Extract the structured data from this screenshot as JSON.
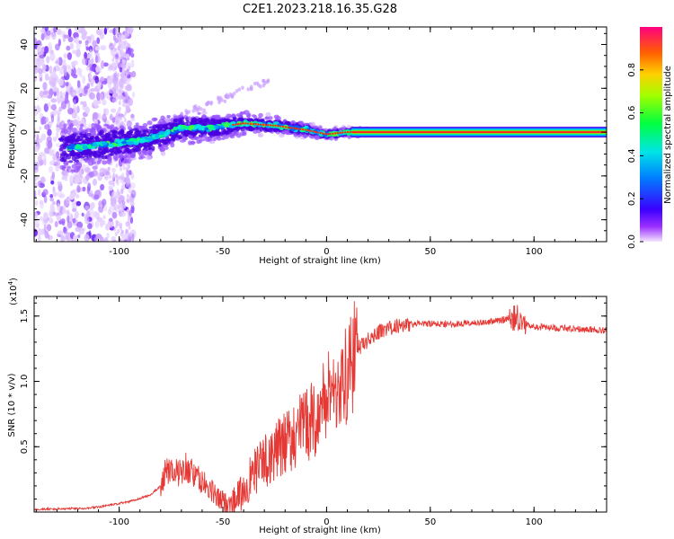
{
  "title": "C2E1.2023.218.16.35.G28",
  "chart_data": [
    {
      "type": "heatmap",
      "name": "spectrogram",
      "xlabel": "Height of straight line (km)",
      "ylabel": "Frequency (Hz)",
      "xlim": [
        -141,
        135
      ],
      "ylim": [
        -50,
        48
      ],
      "x_ticks": [
        -100,
        -50,
        0,
        50,
        100
      ],
      "x_tick_labels": [
        "-100",
        "-50",
        "0",
        "50",
        "100"
      ],
      "y_ticks": [
        -40,
        -20,
        0,
        20,
        40
      ],
      "y_tick_labels": [
        "-40",
        "-20",
        "0",
        "20",
        "40"
      ],
      "colorbar": {
        "label": "Normalized spectral amplitude",
        "range": [
          0,
          1
        ],
        "ticks": [
          0.0,
          0.2,
          0.4,
          0.6,
          0.8
        ],
        "tick_labels": [
          "0.0",
          "0.2",
          "0.4",
          "0.6",
          "0.8"
        ]
      },
      "ridge": [
        {
          "x": -120,
          "f": -7
        },
        {
          "x": -100,
          "f": -5
        },
        {
          "x": -85,
          "f": -3
        },
        {
          "x": -70,
          "f": 2
        },
        {
          "x": -55,
          "f": 2
        },
        {
          "x": -40,
          "f": 4
        },
        {
          "x": -25,
          "f": 3
        },
        {
          "x": -10,
          "f": 1
        },
        {
          "x": 0,
          "f": -1
        },
        {
          "x": 10,
          "f": 0
        },
        {
          "x": 135,
          "f": 0
        }
      ]
    },
    {
      "type": "line",
      "name": "snr",
      "xlabel": "Height of straight line (km)",
      "ylabel": "SNR (10 * v/v)",
      "multiplier": "(x10",
      "multiplier_exp": "4",
      "multiplier_close": ")",
      "xlim": [
        -141,
        135
      ],
      "ylim": [
        0.0,
        1.65
      ],
      "x_ticks": [
        -100,
        -50,
        0,
        50,
        100
      ],
      "x_tick_labels": [
        "-100",
        "-50",
        "0",
        "50",
        "100"
      ],
      "y_ticks": [
        0.5,
        1.0,
        1.5
      ],
      "y_tick_labels": [
        "0.5",
        "1.0",
        "1.5"
      ],
      "color": "#e53935",
      "series": [
        {
          "name": "SNR",
          "x": [
            -141,
            -115,
            -105,
            -95,
            -85,
            -80,
            -77,
            -72,
            -68,
            -63,
            -58,
            -52,
            -48,
            -42,
            -35,
            -28,
            -20,
            -12,
            -5,
            2,
            8,
            15,
            25,
            35,
            45,
            60,
            75,
            85,
            90,
            93,
            98,
            110,
            125,
            135
          ],
          "values": [
            0.02,
            0.03,
            0.05,
            0.08,
            0.13,
            0.2,
            0.33,
            0.3,
            0.35,
            0.27,
            0.2,
            0.1,
            0.06,
            0.12,
            0.3,
            0.42,
            0.52,
            0.65,
            0.72,
            0.95,
            0.98,
            1.25,
            1.38,
            1.43,
            1.44,
            1.44,
            1.45,
            1.47,
            1.5,
            1.48,
            1.42,
            1.41,
            1.4,
            1.39
          ]
        }
      ]
    }
  ]
}
